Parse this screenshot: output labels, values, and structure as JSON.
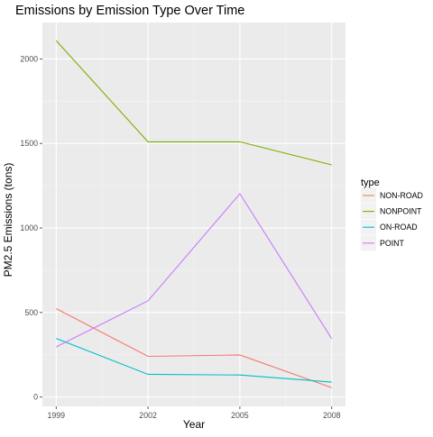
{
  "chart_data": {
    "type": "line",
    "title": "Emissions by Emission Type Over Time",
    "xlabel": "Year",
    "ylabel": "PM2.5 Emissions (tons)",
    "x": [
      1999,
      2002,
      2005,
      2008
    ],
    "x_ticks": [
      "1999",
      "2002",
      "2005",
      "2008"
    ],
    "y_ticks": [
      0,
      500,
      1000,
      1500,
      2000
    ],
    "xlim": [
      1998.55,
      2008.45
    ],
    "ylim": [
      -55,
      2215
    ],
    "grid": true,
    "legend": {
      "title": "type",
      "placement": "right"
    },
    "series": [
      {
        "name": "NON-ROAD",
        "color": "#F8766D",
        "values": [
          522.9,
          240.8,
          248.9,
          55.8
        ]
      },
      {
        "name": "NONPOINT",
        "color": "#7CAE00",
        "values": [
          2107.6,
          1509.5,
          1509.5,
          1373.2
        ]
      },
      {
        "name": "ON-ROAD",
        "color": "#00BFC4",
        "values": [
          346.8,
          134.3,
          130.4,
          88.3
        ]
      },
      {
        "name": "POINT",
        "color": "#C77CFF",
        "values": [
          296.8,
          569.3,
          1202.5,
          344.98
        ]
      }
    ]
  }
}
